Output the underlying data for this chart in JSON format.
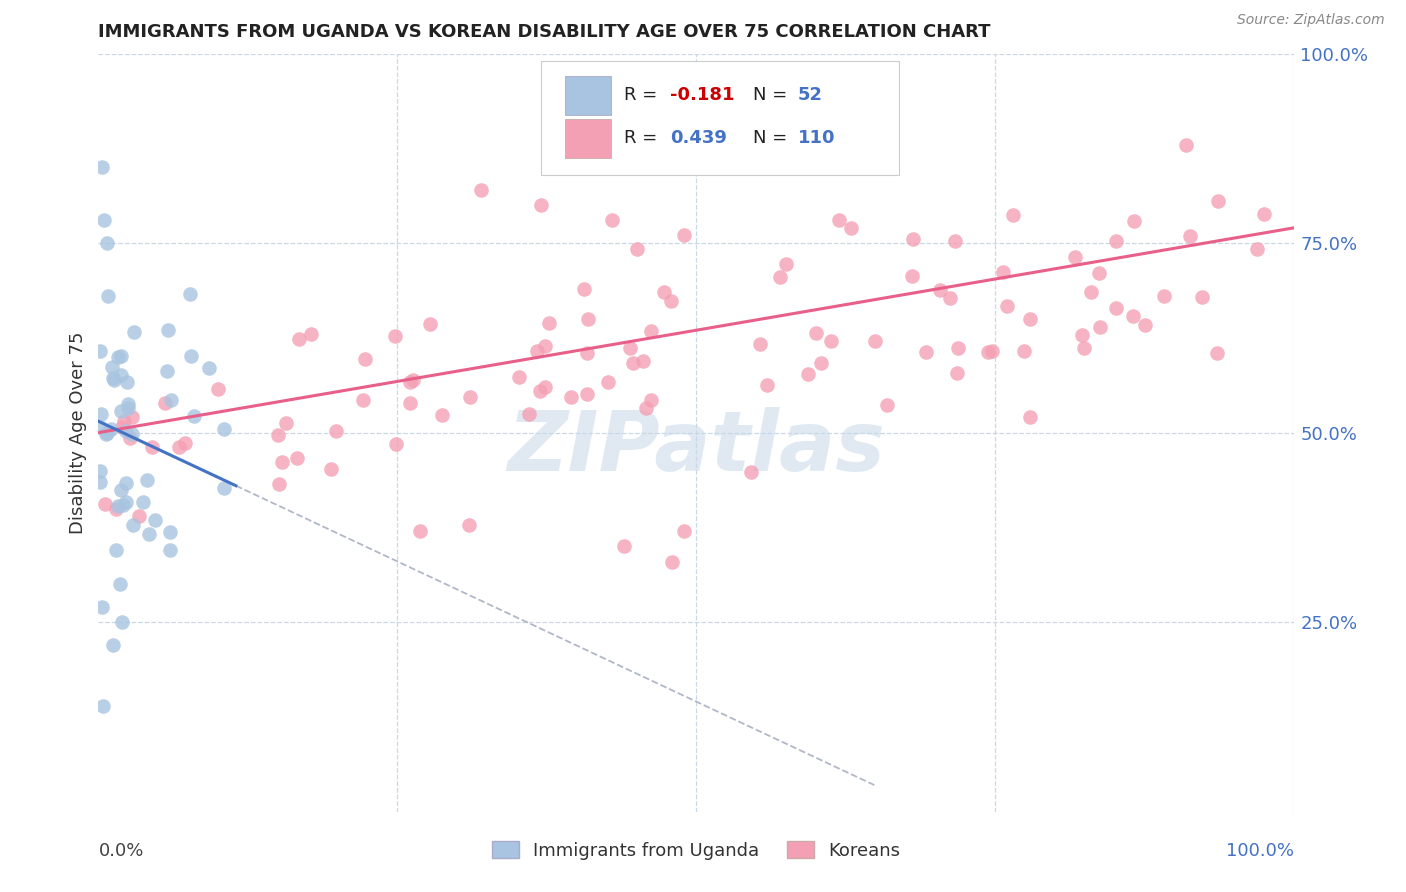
{
  "title": "IMMIGRANTS FROM UGANDA VS KOREAN DISABILITY AGE OVER 75 CORRELATION CHART",
  "source": "Source: ZipAtlas.com",
  "ylabel": "Disability Age Over 75",
  "watermark": "ZIPatlas",
  "legend_label1": "Immigrants from Uganda",
  "legend_label2": "Koreans",
  "R1": -0.181,
  "N1": 52,
  "R2": 0.439,
  "N2": 110,
  "color_uganda": "#a8c4e0",
  "color_korea": "#f4a0b4",
  "color_uganda_line": "#4472c4",
  "color_korea_line": "#e8608a",
  "grid_color": "#c8d8e8",
  "title_color": "#222222",
  "source_color": "#888888",
  "right_tick_color": "#4472c4",
  "legend_border_color": "#cccccc",
  "dashed_line_color": "#b0b8c8",
  "watermark_color": "#c8d8e8"
}
